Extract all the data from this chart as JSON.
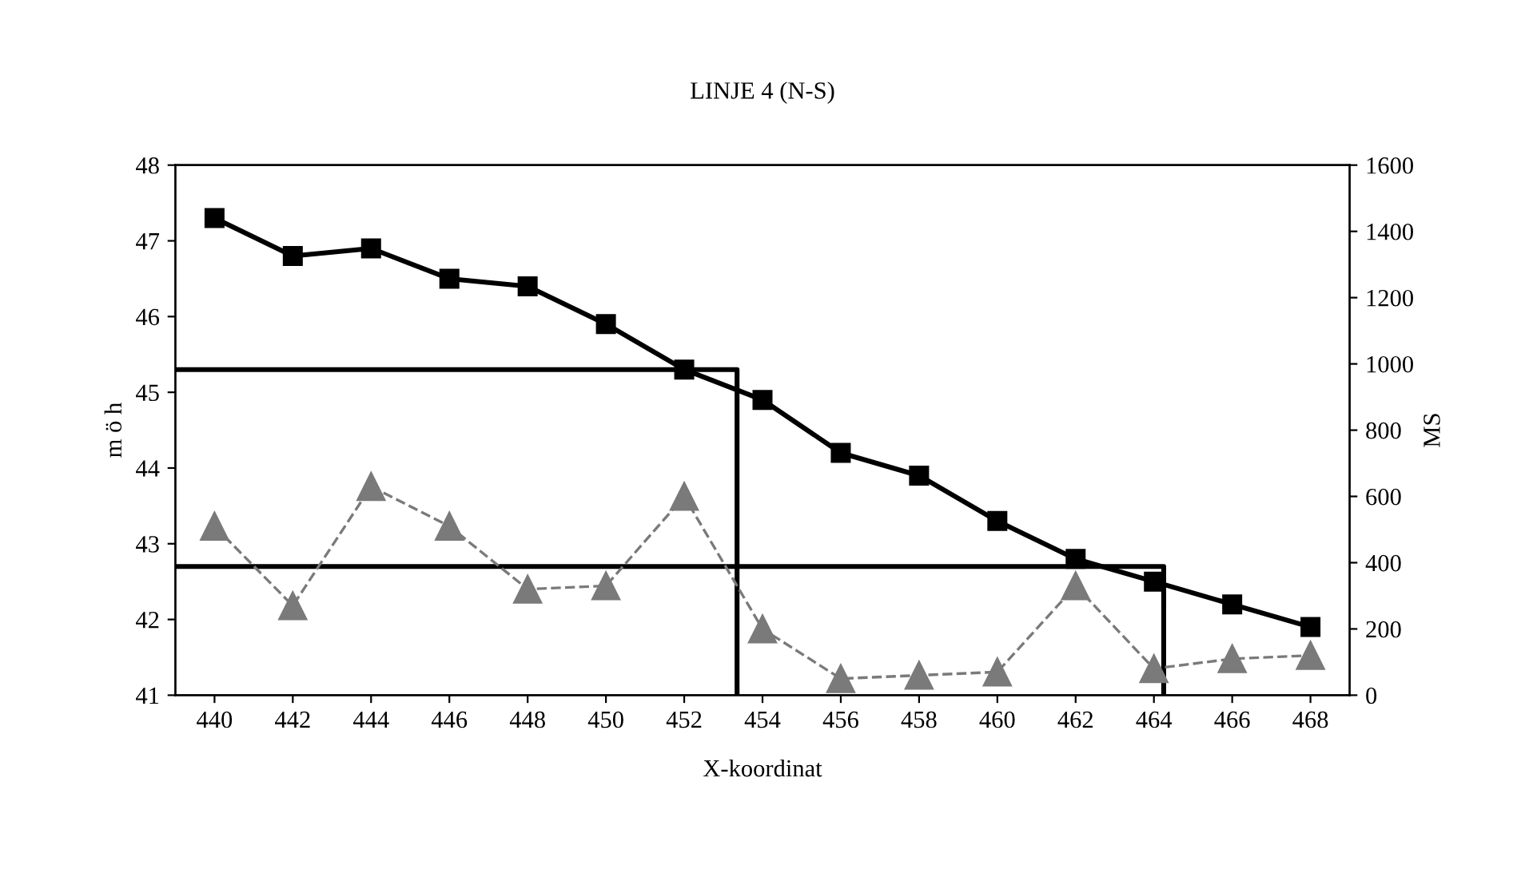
{
  "chart_data": {
    "type": "line",
    "title": "LINJE 4 (N-S)",
    "xlabel": "X-koordinat",
    "ylabel": "m ö h",
    "y2label": "MS",
    "x": [
      440,
      442,
      444,
      446,
      448,
      450,
      452,
      454,
      456,
      458,
      460,
      462,
      464,
      466,
      468
    ],
    "xlim": [
      439,
      469
    ],
    "xticks": [
      440,
      442,
      444,
      446,
      448,
      450,
      452,
      454,
      456,
      458,
      460,
      462,
      464,
      466,
      468
    ],
    "ylim": [
      41,
      48
    ],
    "yticks": [
      41,
      42,
      43,
      44,
      45,
      46,
      47,
      48
    ],
    "y2lim": [
      0,
      1600
    ],
    "y2ticks": [
      0,
      200,
      400,
      600,
      800,
      1000,
      1200,
      1400,
      1600
    ],
    "grid": false,
    "legend": false,
    "series": [
      {
        "color": "#000000",
        "marker": "square",
        "line_style": "solid",
        "values": [
          47.3,
          46.8,
          46.9,
          46.5,
          46.4,
          45.9,
          45.3,
          44.9,
          44.2,
          43.9,
          43.3,
          42.8,
          42.5,
          42.2,
          41.9
        ]
      },
      {
        "color": "#7a7a7a",
        "marker": "triangle",
        "line_style": "dashed",
        "axis": "y2",
        "values": [
          510,
          270,
          630,
          510,
          320,
          330,
          600,
          200,
          50,
          60,
          70,
          330,
          80,
          110,
          120
        ]
      },
      {
        "color": "#000000",
        "marker": "none",
        "line_style": "solid",
        "x": [
          439,
          453.35,
          453.35
        ],
        "values": [
          45.3,
          45.3,
          41
        ]
      },
      {
        "color": "#000000",
        "marker": "none",
        "line_style": "solid",
        "x": [
          439,
          464.25,
          464.25
        ],
        "values": [
          42.7,
          42.7,
          41
        ]
      }
    ]
  }
}
